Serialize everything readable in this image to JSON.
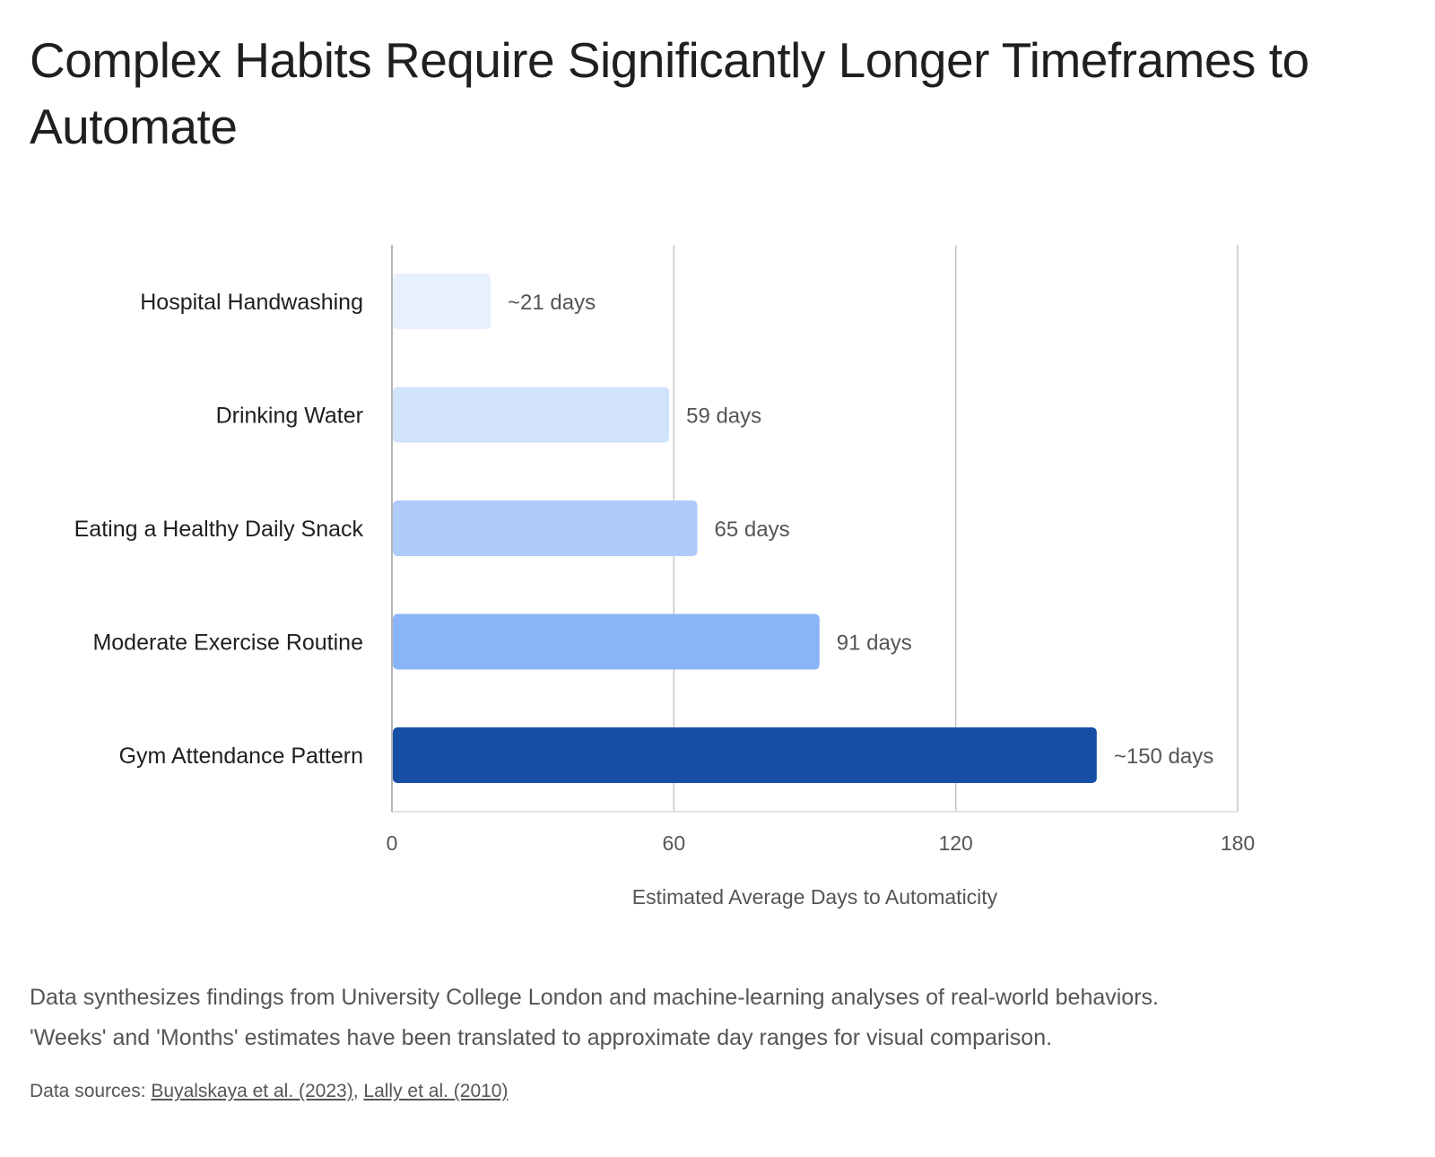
{
  "title": "Complex Habits Require Significantly Longer Timeframes to Automate",
  "footnote": {
    "line1": "Data synthesizes findings from University College London and machine-learning analyses of real-world behaviors.",
    "line2": "'Weeks' and 'Months' estimates have been translated to approximate day ranges for visual comparison."
  },
  "sources": {
    "label": "Data sources:",
    "links": [
      "Buyalskaya et al. (2023)",
      "Lally et al. (2010)"
    ],
    "separator": ","
  },
  "chart_data": {
    "type": "bar",
    "orientation": "horizontal",
    "categories": [
      "Hospital Handwashing",
      "Drinking Water",
      "Eating a Healthy Daily Snack",
      "Moderate Exercise Routine",
      "Gym Attendance Pattern"
    ],
    "values": [
      21,
      59,
      65,
      91,
      150
    ],
    "data_labels": [
      "~21 days",
      "59 days",
      "65 days",
      "91 days",
      "~150 days"
    ],
    "colors": [
      "#e8effd",
      "#d2e3fc",
      "#aecbfa",
      "#8ab4f8",
      "#174ea6"
    ],
    "xlabel": "Estimated Average Days to Automaticity",
    "ylabel": "",
    "xlim": [
      0,
      180
    ],
    "xticks": [
      0,
      60,
      120,
      180
    ],
    "grid": true,
    "legend": "none"
  }
}
